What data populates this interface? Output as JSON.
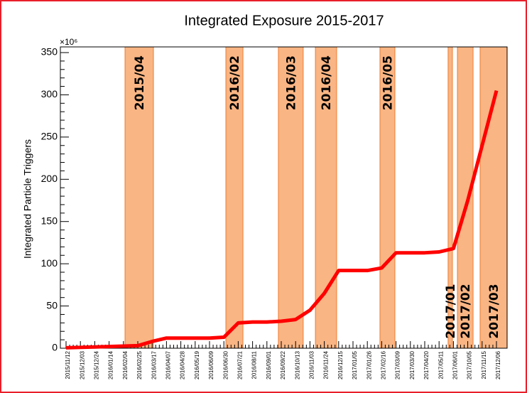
{
  "chart_data": {
    "type": "line",
    "title": "Integrated Exposure 2015-2017",
    "y_label": "Integrated Particle Triggers",
    "y_multiplier": "×10⁶",
    "categories": [
      "2015/11/12",
      "2015/12/03",
      "2015/12/24",
      "2016/01/14",
      "2016/02/04",
      "2016/02/25",
      "2016/03/17",
      "2016/04/07",
      "2016/04/28",
      "2016/05/19",
      "2016/06/09",
      "2016/06/30",
      "2016/07/21",
      "2016/08/11",
      "2016/09/01",
      "2016/09/22",
      "2016/10/13",
      "2016/11/03",
      "2016/11/24",
      "2016/12/15",
      "2017/01/05",
      "2017/01/26",
      "2017/02/16",
      "2017/03/09",
      "2017/03/30",
      "2017/04/20",
      "2017/05/11",
      "2017/06/01",
      "2017/10/05",
      "2017/11/15",
      "2017/12/06"
    ],
    "series": [
      {
        "color": "#ff0000",
        "values": [
          0.5,
          1,
          1.5,
          2,
          2.5,
          3,
          8,
          12,
          12,
          12,
          12,
          13,
          30,
          31,
          31,
          32,
          34,
          45,
          65,
          92,
          92,
          92,
          95,
          113,
          113,
          113,
          114,
          118,
          175,
          240,
          305
        ]
      }
    ],
    "ylim": [
      0,
      350
    ],
    "yticks": [
      0,
      50,
      100,
      150,
      200,
      250,
      300,
      350
    ],
    "bands": [
      {
        "label": "2015/04",
        "start": 4.11,
        "end": 6.09,
        "label_pos": "top"
      },
      {
        "label": "2016/02",
        "start": 11.14,
        "end": 12.33,
        "label_pos": "top"
      },
      {
        "label": "2016/03",
        "start": 14.8,
        "end": 16.53,
        "label_pos": "top"
      },
      {
        "label": "2016/04",
        "start": 17.38,
        "end": 18.86,
        "label_pos": "top"
      },
      {
        "label": "2016/05",
        "start": 21.88,
        "end": 22.92,
        "label_pos": "top"
      },
      {
        "label": "2017/01",
        "start": 26.63,
        "end": 26.93,
        "label_pos": "bottom"
      },
      {
        "label": "2017/02",
        "start": 27.28,
        "end": 28.37,
        "label_pos": "bottom"
      },
      {
        "label": "2017/03",
        "start": 28.86,
        "end": 30.74,
        "label_pos": "bottom"
      }
    ],
    "band_color": "#f9b584",
    "band_edge": "#f07a30"
  }
}
